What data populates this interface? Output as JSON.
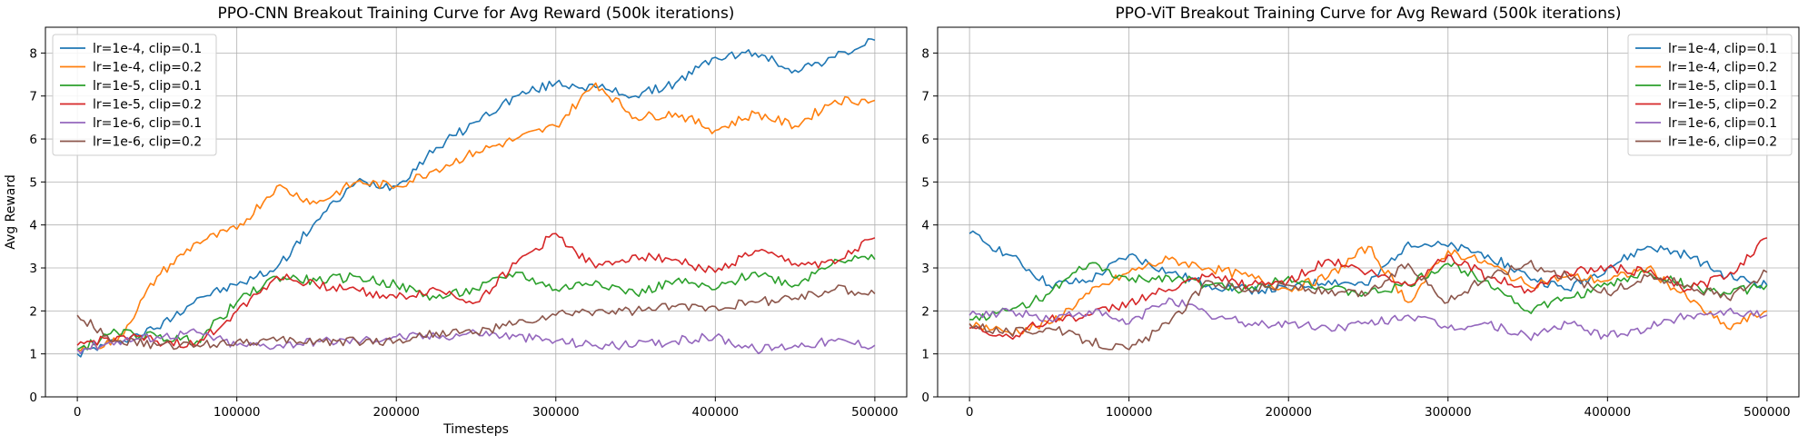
{
  "chart_data": [
    {
      "type": "line",
      "title": "PPO-CNN Breakout Training Curve for Avg Reward (500k iterations)",
      "xlabel": "Timesteps",
      "ylabel": "Avg Reward",
      "xlim": [
        -20000,
        520000
      ],
      "ylim": [
        0,
        8.6
      ],
      "xticks": [
        0,
        100000,
        200000,
        300000,
        400000,
        500000
      ],
      "yticks": [
        0,
        1,
        2,
        3,
        4,
        5,
        6,
        7,
        8
      ],
      "grid": true,
      "legend": "top-left",
      "series": [
        {
          "name": "lr=1e-4, clip=0.1",
          "color": "#1f77b4",
          "x": [
            0,
            25000,
            50000,
            75000,
            100000,
            125000,
            150000,
            175000,
            200000,
            225000,
            250000,
            275000,
            300000,
            325000,
            350000,
            375000,
            400000,
            425000,
            450000,
            475000,
            500000
          ],
          "y": [
            1.0,
            1.3,
            1.6,
            2.3,
            2.6,
            3.0,
            4.1,
            5.0,
            4.9,
            5.8,
            6.4,
            7.0,
            7.3,
            7.2,
            7.0,
            7.3,
            7.9,
            8.0,
            7.6,
            7.9,
            8.3
          ]
        },
        {
          "name": "lr=1e-4, clip=0.2",
          "color": "#ff7f0e",
          "x": [
            0,
            25000,
            50000,
            75000,
            100000,
            125000,
            150000,
            175000,
            200000,
            225000,
            250000,
            275000,
            300000,
            325000,
            350000,
            375000,
            400000,
            425000,
            450000,
            475000,
            500000
          ],
          "y": [
            1.1,
            1.3,
            2.8,
            3.6,
            3.9,
            4.9,
            4.5,
            5.0,
            4.9,
            5.3,
            5.7,
            6.0,
            6.3,
            7.3,
            6.5,
            6.6,
            6.2,
            6.6,
            6.3,
            6.9,
            6.9
          ]
        },
        {
          "name": "lr=1e-5, clip=0.1",
          "color": "#2ca02c",
          "x": [
            0,
            25000,
            50000,
            75000,
            100000,
            125000,
            150000,
            175000,
            200000,
            225000,
            250000,
            275000,
            300000,
            325000,
            350000,
            375000,
            400000,
            425000,
            450000,
            475000,
            500000
          ],
          "y": [
            1.1,
            1.5,
            1.4,
            1.3,
            2.2,
            2.8,
            2.7,
            2.8,
            2.6,
            2.3,
            2.5,
            2.9,
            2.5,
            2.7,
            2.4,
            2.7,
            2.5,
            2.9,
            2.6,
            3.2,
            3.2
          ]
        },
        {
          "name": "lr=1e-5, clip=0.2",
          "color": "#d62728",
          "x": [
            0,
            25000,
            50000,
            75000,
            100000,
            125000,
            150000,
            175000,
            200000,
            225000,
            250000,
            275000,
            300000,
            325000,
            350000,
            375000,
            400000,
            425000,
            450000,
            475000,
            500000
          ],
          "y": [
            1.2,
            1.4,
            1.3,
            1.2,
            2.0,
            2.8,
            2.6,
            2.5,
            2.3,
            2.5,
            2.2,
            3.1,
            3.8,
            3.0,
            3.3,
            3.2,
            2.9,
            3.4,
            3.1,
            3.1,
            3.7
          ]
        },
        {
          "name": "lr=1e-6, clip=0.1",
          "color": "#9467bd",
          "x": [
            0,
            25000,
            50000,
            75000,
            100000,
            125000,
            150000,
            175000,
            200000,
            225000,
            250000,
            275000,
            300000,
            325000,
            350000,
            375000,
            400000,
            425000,
            450000,
            475000,
            500000
          ],
          "y": [
            1.1,
            1.3,
            1.4,
            1.5,
            1.2,
            1.2,
            1.3,
            1.3,
            1.4,
            1.4,
            1.5,
            1.4,
            1.3,
            1.2,
            1.2,
            1.3,
            1.4,
            1.1,
            1.2,
            1.3,
            1.2
          ]
        },
        {
          "name": "lr=1e-6, clip=0.2",
          "color": "#8c564b",
          "x": [
            0,
            25000,
            50000,
            75000,
            100000,
            125000,
            150000,
            175000,
            200000,
            225000,
            250000,
            275000,
            300000,
            325000,
            350000,
            375000,
            400000,
            425000,
            450000,
            475000,
            500000
          ],
          "y": [
            1.9,
            1.3,
            1.2,
            1.2,
            1.3,
            1.3,
            1.3,
            1.3,
            1.3,
            1.5,
            1.5,
            1.7,
            1.9,
            2.0,
            2.0,
            2.1,
            2.1,
            2.2,
            2.3,
            2.5,
            2.4
          ]
        }
      ]
    },
    {
      "type": "line",
      "title": "PPO-ViT Breakout Training Curve for Avg Reward (500k iterations)",
      "xlabel": "",
      "ylabel": "",
      "xlim": [
        -20000,
        520000
      ],
      "ylim": [
        0,
        8.6
      ],
      "xticks": [
        0,
        100000,
        200000,
        300000,
        400000,
        500000
      ],
      "yticks": [
        0,
        1,
        2,
        3,
        4,
        5,
        6,
        7,
        8
      ],
      "grid": true,
      "legend": "top-right",
      "series": [
        {
          "name": "lr=1e-4, clip=0.1",
          "color": "#1f77b4",
          "x": [
            0,
            25000,
            50000,
            75000,
            100000,
            125000,
            150000,
            175000,
            200000,
            225000,
            250000,
            275000,
            300000,
            325000,
            350000,
            375000,
            400000,
            425000,
            450000,
            475000,
            500000
          ],
          "y": [
            3.8,
            3.3,
            2.6,
            2.7,
            3.3,
            2.9,
            2.6,
            2.5,
            2.5,
            2.7,
            2.6,
            3.6,
            3.5,
            3.3,
            2.8,
            2.5,
            3.0,
            3.5,
            3.3,
            2.8,
            2.6
          ]
        },
        {
          "name": "lr=1e-4, clip=0.2",
          "color": "#ff7f0e",
          "x": [
            0,
            25000,
            50000,
            75000,
            100000,
            125000,
            150000,
            175000,
            200000,
            225000,
            250000,
            275000,
            300000,
            325000,
            350000,
            375000,
            400000,
            425000,
            450000,
            475000,
            500000
          ],
          "y": [
            1.7,
            1.5,
            1.7,
            2.4,
            2.9,
            3.2,
            3.0,
            2.8,
            2.5,
            2.8,
            3.5,
            2.2,
            3.4,
            3.1,
            2.6,
            2.8,
            2.7,
            3.0,
            2.3,
            1.6,
            2.0
          ]
        },
        {
          "name": "lr=1e-5, clip=0.1",
          "color": "#2ca02c",
          "x": [
            0,
            25000,
            50000,
            75000,
            100000,
            125000,
            150000,
            175000,
            200000,
            225000,
            250000,
            275000,
            300000,
            325000,
            350000,
            375000,
            400000,
            425000,
            450000,
            475000,
            500000
          ],
          "y": [
            1.8,
            2.0,
            2.4,
            3.1,
            2.7,
            2.8,
            2.6,
            2.5,
            2.8,
            2.5,
            2.4,
            2.6,
            3.1,
            2.7,
            2.0,
            2.3,
            2.6,
            2.9,
            2.6,
            2.4,
            2.6
          ]
        },
        {
          "name": "lr=1e-5, clip=0.2",
          "color": "#d62728",
          "x": [
            0,
            25000,
            50000,
            75000,
            100000,
            125000,
            150000,
            175000,
            200000,
            225000,
            250000,
            275000,
            300000,
            325000,
            350000,
            375000,
            400000,
            425000,
            450000,
            475000,
            500000
          ],
          "y": [
            1.6,
            1.4,
            1.8,
            1.9,
            2.2,
            2.5,
            2.8,
            2.6,
            2.7,
            3.2,
            2.9,
            2.6,
            3.3,
            2.8,
            2.5,
            2.9,
            3.0,
            2.9,
            2.5,
            2.8,
            3.7
          ]
        },
        {
          "name": "lr=1e-6, clip=0.1",
          "color": "#9467bd",
          "x": [
            0,
            25000,
            50000,
            75000,
            100000,
            125000,
            150000,
            175000,
            200000,
            225000,
            250000,
            275000,
            300000,
            325000,
            350000,
            375000,
            400000,
            425000,
            450000,
            475000,
            500000
          ],
          "y": [
            1.9,
            2.0,
            1.8,
            2.0,
            1.7,
            2.3,
            1.9,
            1.7,
            1.7,
            1.6,
            1.7,
            1.9,
            1.6,
            1.7,
            1.4,
            1.7,
            1.4,
            1.6,
            1.9,
            2.0,
            1.9
          ]
        },
        {
          "name": "lr=1e-6, clip=0.2",
          "color": "#8c564b",
          "x": [
            0,
            25000,
            50000,
            75000,
            100000,
            125000,
            150000,
            175000,
            200000,
            225000,
            250000,
            275000,
            300000,
            325000,
            350000,
            375000,
            400000,
            425000,
            450000,
            475000,
            500000
          ],
          "y": [
            1.7,
            1.5,
            1.6,
            1.3,
            1.1,
            1.7,
            2.7,
            2.5,
            2.6,
            2.4,
            2.4,
            3.1,
            2.2,
            2.8,
            3.1,
            2.8,
            2.4,
            2.8,
            2.6,
            2.3,
            2.9
          ]
        }
      ]
    }
  ]
}
